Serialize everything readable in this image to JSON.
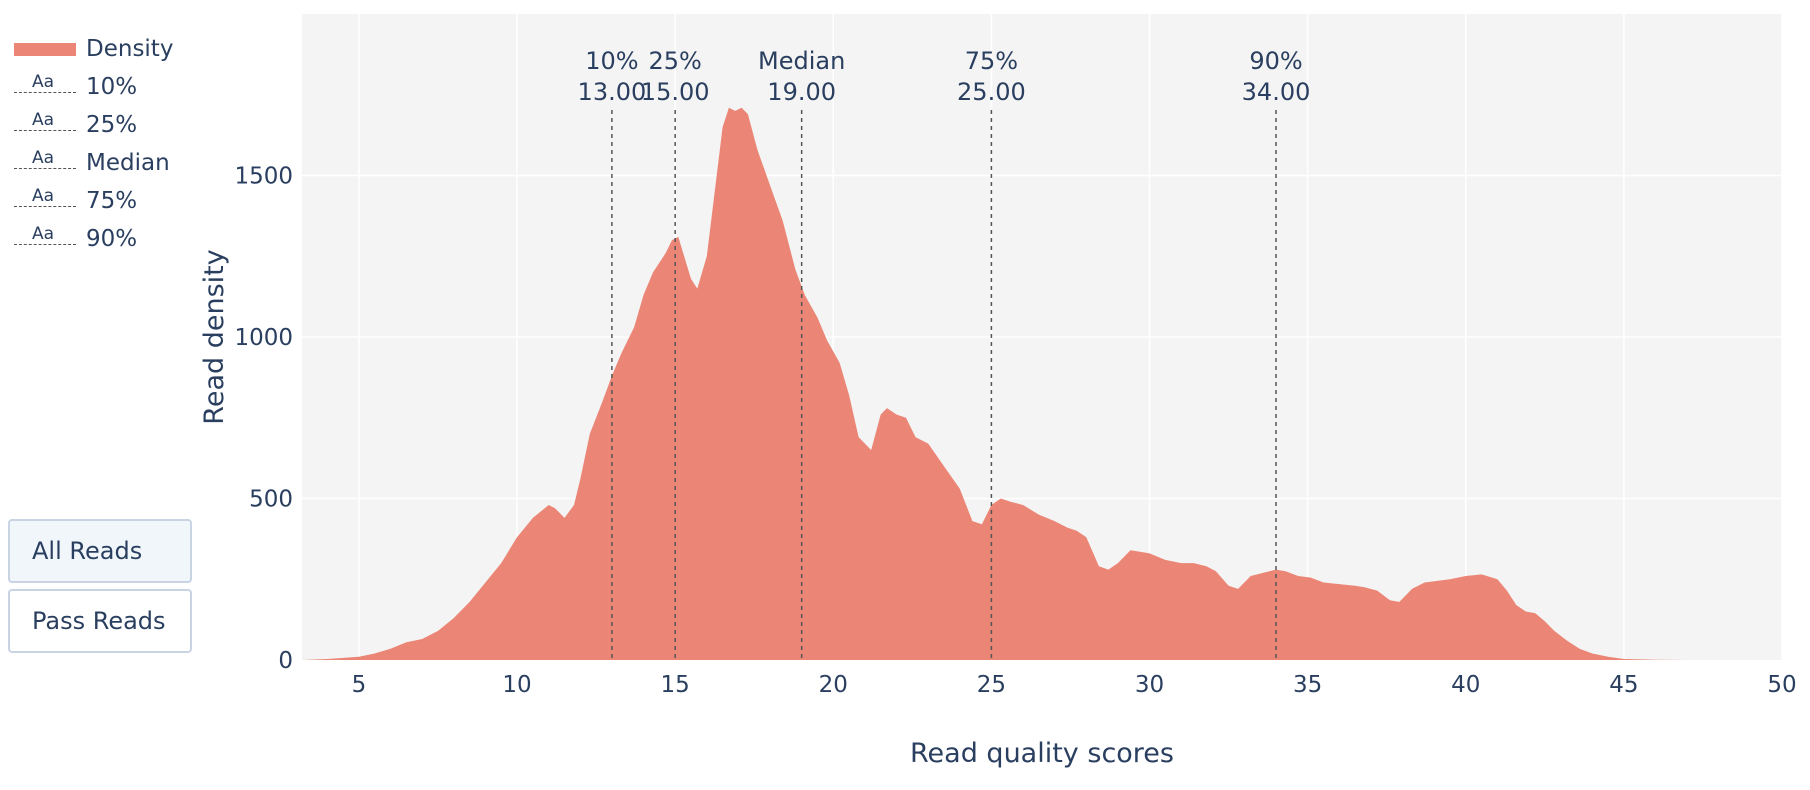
{
  "legend": {
    "items": [
      {
        "label": "Density",
        "kind": "fill"
      },
      {
        "label": "10%",
        "kind": "line",
        "symbol": "Aa"
      },
      {
        "label": "25%",
        "kind": "line",
        "symbol": "Aa"
      },
      {
        "label": "Median",
        "kind": "line",
        "symbol": "Aa"
      },
      {
        "label": "75%",
        "kind": "line",
        "symbol": "Aa"
      },
      {
        "label": "90%",
        "kind": "line",
        "symbol": "Aa"
      }
    ]
  },
  "buttons": {
    "all_reads": "All Reads",
    "pass_reads": "Pass Reads",
    "active": "all_reads"
  },
  "colors": {
    "fill": "#eb8575",
    "plot_bg": "#f4f4f4",
    "grid": "#ffffff",
    "text": "#2a3f5f",
    "marker_line": "#555555"
  },
  "chart_data": {
    "type": "area",
    "title": "",
    "xlabel": "Read quality scores",
    "ylabel": "Read density",
    "xlim": [
      3.2,
      50
    ],
    "ylim": [
      0,
      2000
    ],
    "xticks": [
      5,
      10,
      15,
      20,
      25,
      30,
      35,
      40,
      45,
      50
    ],
    "yticks": [
      0,
      500,
      1000,
      1500
    ],
    "grid": true,
    "legend_position": "left",
    "series": [
      {
        "name": "Density",
        "x": [
          3.2,
          4,
          5,
          5.5,
          6,
          6.5,
          7,
          7.5,
          8,
          8.5,
          9,
          9.5,
          10,
          10.5,
          11,
          11.2,
          11.5,
          11.8,
          12,
          12.3,
          12.7,
          13,
          13.3,
          13.7,
          14,
          14.3,
          14.7,
          14.9,
          15.1,
          15.5,
          15.7,
          16,
          16.3,
          16.5,
          16.7,
          16.9,
          17.1,
          17.3,
          17.6,
          18,
          18.4,
          18.8,
          19.1,
          19.5,
          19.8,
          20.2,
          20.5,
          20.8,
          21.2,
          21.5,
          21.7,
          22,
          22.3,
          22.6,
          23,
          23.5,
          24,
          24.4,
          24.7,
          25,
          25.3,
          25.6,
          26,
          26.5,
          27,
          27.4,
          27.7,
          28,
          28.4,
          28.7,
          29,
          29.4,
          29.7,
          30,
          30.5,
          31,
          31.4,
          31.8,
          32.1,
          32.5,
          32.8,
          33.2,
          33.6,
          34,
          34.3,
          34.7,
          35.1,
          35.5,
          36,
          36.5,
          36.8,
          37.2,
          37.6,
          37.9,
          38.3,
          38.7,
          39.1,
          39.5,
          40,
          40.5,
          41,
          41.3,
          41.6,
          41.9,
          42.2,
          42.5,
          42.8,
          43.2,
          43.6,
          44,
          44.5,
          45,
          46,
          47,
          48,
          50
        ],
        "values": [
          0,
          3,
          10,
          20,
          35,
          55,
          65,
          90,
          130,
          180,
          240,
          300,
          380,
          440,
          480,
          470,
          440,
          480,
          560,
          700,
          800,
          880,
          950,
          1030,
          1130,
          1200,
          1260,
          1300,
          1310,
          1180,
          1150,
          1250,
          1490,
          1650,
          1710,
          1700,
          1710,
          1690,
          1580,
          1470,
          1360,
          1210,
          1130,
          1060,
          990,
          920,
          820,
          690,
          650,
          760,
          780,
          760,
          750,
          690,
          670,
          600,
          530,
          430,
          420,
          480,
          500,
          490,
          480,
          450,
          430,
          410,
          400,
          380,
          290,
          280,
          300,
          340,
          335,
          330,
          310,
          300,
          300,
          290,
          275,
          230,
          220,
          260,
          270,
          280,
          275,
          260,
          255,
          240,
          235,
          230,
          225,
          215,
          185,
          180,
          220,
          240,
          245,
          250,
          260,
          265,
          250,
          215,
          170,
          150,
          145,
          120,
          90,
          60,
          35,
          20,
          10,
          3,
          1,
          0,
          0,
          0
        ]
      }
    ],
    "markers": [
      {
        "label": "10%",
        "value_text": "13.00",
        "x": 13
      },
      {
        "label": "25%",
        "value_text": "15.00",
        "x": 15
      },
      {
        "label": "Median",
        "value_text": "19.00",
        "x": 19
      },
      {
        "label": "75%",
        "value_text": "25.00",
        "x": 25
      },
      {
        "label": "90%",
        "value_text": "34.00",
        "x": 34
      }
    ]
  }
}
